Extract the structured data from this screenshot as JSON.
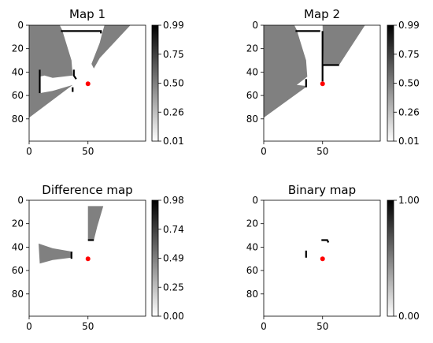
{
  "chart_data": [
    {
      "type": "heatmap",
      "title": "Map 1",
      "xlim": [
        0,
        99
      ],
      "ylim": [
        99,
        0
      ],
      "xticks": [
        0,
        50
      ],
      "yticks": [
        0,
        20,
        40,
        60,
        80
      ],
      "colorbar": {
        "min": 0.01,
        "max": 0.99,
        "ticks": [
          "0.01",
          "0.26",
          "0.50",
          "0.75",
          "0.99"
        ],
        "colormap": "gray_r"
      },
      "regions": [
        {
          "level": 0.5,
          "polygon": [
            [
              0,
              0
            ],
            [
              26,
              0
            ],
            [
              28,
              4
            ],
            [
              36,
              30
            ],
            [
              37,
              43
            ],
            [
              20,
              45
            ],
            [
              13,
              43
            ],
            [
              9,
              44
            ],
            [
              9,
              58
            ],
            [
              20,
              56
            ],
            [
              37,
              51
            ],
            [
              0,
              79
            ]
          ]
        },
        {
          "level": 0.5,
          "polygon": [
            [
              64,
              0
            ],
            [
              86,
              0
            ],
            [
              60,
              28
            ],
            [
              55,
              37
            ],
            [
              53,
              33
            ],
            [
              60,
              15
            ],
            [
              62,
              7
            ]
          ]
        },
        {
          "level": 0.99,
          "polyline": [
            [
              27,
              5
            ],
            [
              61,
              5
            ],
            [
              61,
              7
            ]
          ]
        },
        {
          "level": 0.99,
          "polyline": [
            [
              9,
              38
            ],
            [
              9,
              58
            ]
          ]
        },
        {
          "level": 0.99,
          "polyline": [
            [
              38,
              38
            ],
            [
              38,
              43
            ],
            [
              40,
              46
            ]
          ]
        },
        {
          "level": 0.99,
          "polyline": [
            [
              37,
              53
            ],
            [
              37,
              57
            ]
          ]
        }
      ],
      "robot": {
        "x": 50,
        "y": 50,
        "color": "#ff0000"
      }
    },
    {
      "type": "heatmap",
      "title": "Map 2",
      "xlim": [
        0,
        99
      ],
      "ylim": [
        99,
        0
      ],
      "xticks": [
        0,
        50
      ],
      "yticks": [
        0,
        20,
        40,
        60,
        80
      ],
      "colorbar": {
        "min": 0.01,
        "max": 0.99,
        "ticks": [
          "0.01",
          "0.26",
          "0.50",
          "0.75",
          "0.99"
        ],
        "colormap": "gray_r"
      },
      "regions": [
        {
          "level": 0.5,
          "polygon": [
            [
              0,
              0
            ],
            [
              26,
              0
            ],
            [
              28,
              4
            ],
            [
              36,
              30
            ],
            [
              37,
              44
            ],
            [
              28,
              51
            ],
            [
              37,
              52
            ],
            [
              0,
              79
            ]
          ]
        },
        {
          "level": 0.5,
          "polygon": [
            [
              50,
              0
            ],
            [
              86,
              0
            ],
            [
              64,
              34
            ],
            [
              51,
              34
            ]
          ]
        },
        {
          "level": 0.99,
          "polyline": [
            [
              27,
              5
            ],
            [
              48,
              5
            ]
          ]
        },
        {
          "level": 0.99,
          "polyline": [
            [
              50,
              5
            ],
            [
              50,
              48
            ]
          ]
        },
        {
          "level": 0.99,
          "polyline": [
            [
              36,
              46
            ],
            [
              36,
              53
            ]
          ]
        },
        {
          "level": 0.99,
          "polyline": [
            [
              50,
              34
            ],
            [
              64,
              34
            ]
          ]
        }
      ],
      "robot": {
        "x": 50,
        "y": 50,
        "color": "#ff0000"
      }
    },
    {
      "type": "heatmap",
      "title": "Difference map",
      "xlim": [
        0,
        99
      ],
      "ylim": [
        99,
        0
      ],
      "xticks": [
        0,
        50
      ],
      "yticks": [
        0,
        20,
        40,
        60,
        80
      ],
      "colorbar": {
        "min": 0.0,
        "max": 0.98,
        "ticks": [
          "0.00",
          "0.25",
          "0.49",
          "0.74",
          "0.98"
        ],
        "colormap": "gray_r"
      },
      "regions": [
        {
          "level": 0.49,
          "polygon": [
            [
              50,
              5
            ],
            [
              63,
              5
            ],
            [
              58,
              22
            ],
            [
              55,
              34
            ],
            [
              50,
              34
            ]
          ]
        },
        {
          "level": 0.49,
          "polygon": [
            [
              8,
              37
            ],
            [
              20,
              41
            ],
            [
              37,
              44
            ],
            [
              36,
              49
            ],
            [
              20,
              51
            ],
            [
              9,
              54
            ]
          ]
        },
        {
          "level": 0.98,
          "polyline": [
            [
              36,
              44
            ],
            [
              36,
              50
            ]
          ]
        },
        {
          "level": 0.98,
          "polyline": [
            [
              50,
              34
            ],
            [
              55,
              34
            ]
          ]
        }
      ],
      "robot": {
        "x": 50,
        "y": 50,
        "color": "#ff0000"
      }
    },
    {
      "type": "heatmap",
      "title": "Binary map",
      "xlim": [
        0,
        99
      ],
      "ylim": [
        99,
        0
      ],
      "xticks": [
        0,
        50
      ],
      "yticks": [
        0,
        20,
        40,
        60,
        80
      ],
      "colorbar": {
        "min": 0.0,
        "max": 1.0,
        "ticks": [
          "0.00",
          "1.00"
        ],
        "colormap": "gray_r"
      },
      "regions": [
        {
          "level": 1.0,
          "polyline": [
            [
              36,
              43
            ],
            [
              36,
              49
            ]
          ]
        },
        {
          "level": 1.0,
          "polyline": [
            [
              49,
              34
            ],
            [
              54,
              34
            ],
            [
              55,
              36
            ]
          ]
        }
      ],
      "robot": {
        "x": 50,
        "y": 50,
        "color": "#ff0000"
      }
    }
  ]
}
